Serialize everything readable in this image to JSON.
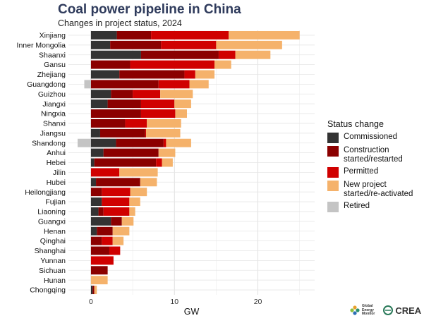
{
  "header": {
    "title": "Coal power pipeline in China",
    "subtitle": "Changes in project status, 2024"
  },
  "footer": {
    "gem_logo_text": [
      "Global",
      "Energy",
      "Monitor"
    ],
    "crea_logo_text": "CREA"
  },
  "colors": {
    "Commissioned": "#333333",
    "Construction started/restarted": "#8b0000",
    "Permitted": "#d00000",
    "New project started/re-activated": "#f5b26b",
    "Retired": "#c4c4c4"
  },
  "chart_data": {
    "type": "bar",
    "orientation": "horizontal",
    "stacked": true,
    "xlabel": "GW",
    "xlim": [
      -2.7,
      26.8
    ],
    "xticks": [
      0,
      10,
      20
    ],
    "grid": true,
    "legend_title": "Status change",
    "legend_position": "right",
    "categories": [
      "Xinjiang",
      "Inner Mongolia",
      "Shaanxi",
      "Gansu",
      "Zhejiang",
      "Guangdong",
      "Guizhou",
      "Jiangxi",
      "Ningxia",
      "Shanxi",
      "Jiangsu",
      "Shandong",
      "Anhui",
      "Hebei",
      "Jilin",
      "Hubei",
      "Heilongjiang",
      "Fujian",
      "Liaoning",
      "Guangxi",
      "Henan",
      "Qinghai",
      "Shanghai",
      "Yunnan",
      "Sichuan",
      "Hunan",
      "Chongqing"
    ],
    "series": [
      {
        "name": "Commissioned",
        "legend_label": [
          "Commissioned"
        ],
        "values": [
          3.1,
          2.3,
          6.0,
          0,
          3.4,
          0,
          2.4,
          2.0,
          0,
          0,
          1.1,
          3.0,
          1.5,
          0.4,
          0,
          0.6,
          0,
          1.3,
          0.9,
          2.4,
          0.7,
          0,
          0,
          0,
          0,
          0,
          0.2
        ]
      },
      {
        "name": "Construction started/restarted",
        "legend_label": [
          "Construction",
          "started/restarted"
        ],
        "values": [
          4.1,
          6.1,
          9.3,
          4.7,
          7.8,
          8.1,
          2.6,
          4.0,
          6.0,
          4.1,
          5.4,
          5.7,
          6.6,
          7.4,
          0,
          5.3,
          1.3,
          0,
          0.6,
          1.3,
          1.9,
          1.3,
          2.2,
          0,
          2.0,
          0,
          0.2
        ]
      },
      {
        "name": "Permitted",
        "legend_label": [
          "Permitted"
        ],
        "values": [
          9.3,
          6.6,
          2.0,
          10.1,
          1.3,
          3.7,
          3.3,
          4.0,
          4.1,
          2.6,
          0.1,
          0.3,
          0,
          0.7,
          3.4,
          0,
          3.4,
          3.3,
          3.1,
          0,
          0,
          1.3,
          1.3,
          2.7,
          0,
          0,
          0
        ]
      },
      {
        "name": "New project started/re-activated",
        "legend_label": [
          "New project",
          "started/re-activated"
        ],
        "values": [
          8.5,
          7.9,
          4.2,
          2.0,
          2.3,
          2.3,
          3.9,
          2.0,
          1.4,
          4.1,
          4.1,
          3.0,
          2.0,
          1.3,
          4.6,
          2.0,
          2.0,
          1.3,
          0.7,
          1.4,
          2.0,
          1.3,
          0,
          0,
          0,
          2.0,
          0.3
        ]
      },
      {
        "name": "Retired",
        "legend_label": [
          "Retired"
        ],
        "values": [
          0,
          0,
          0,
          0,
          0,
          -0.8,
          0,
          0,
          0,
          0,
          0,
          -1.6,
          0,
          0,
          0,
          0,
          0,
          0,
          0,
          0,
          0,
          0,
          0,
          0,
          0,
          0,
          0
        ]
      }
    ]
  }
}
